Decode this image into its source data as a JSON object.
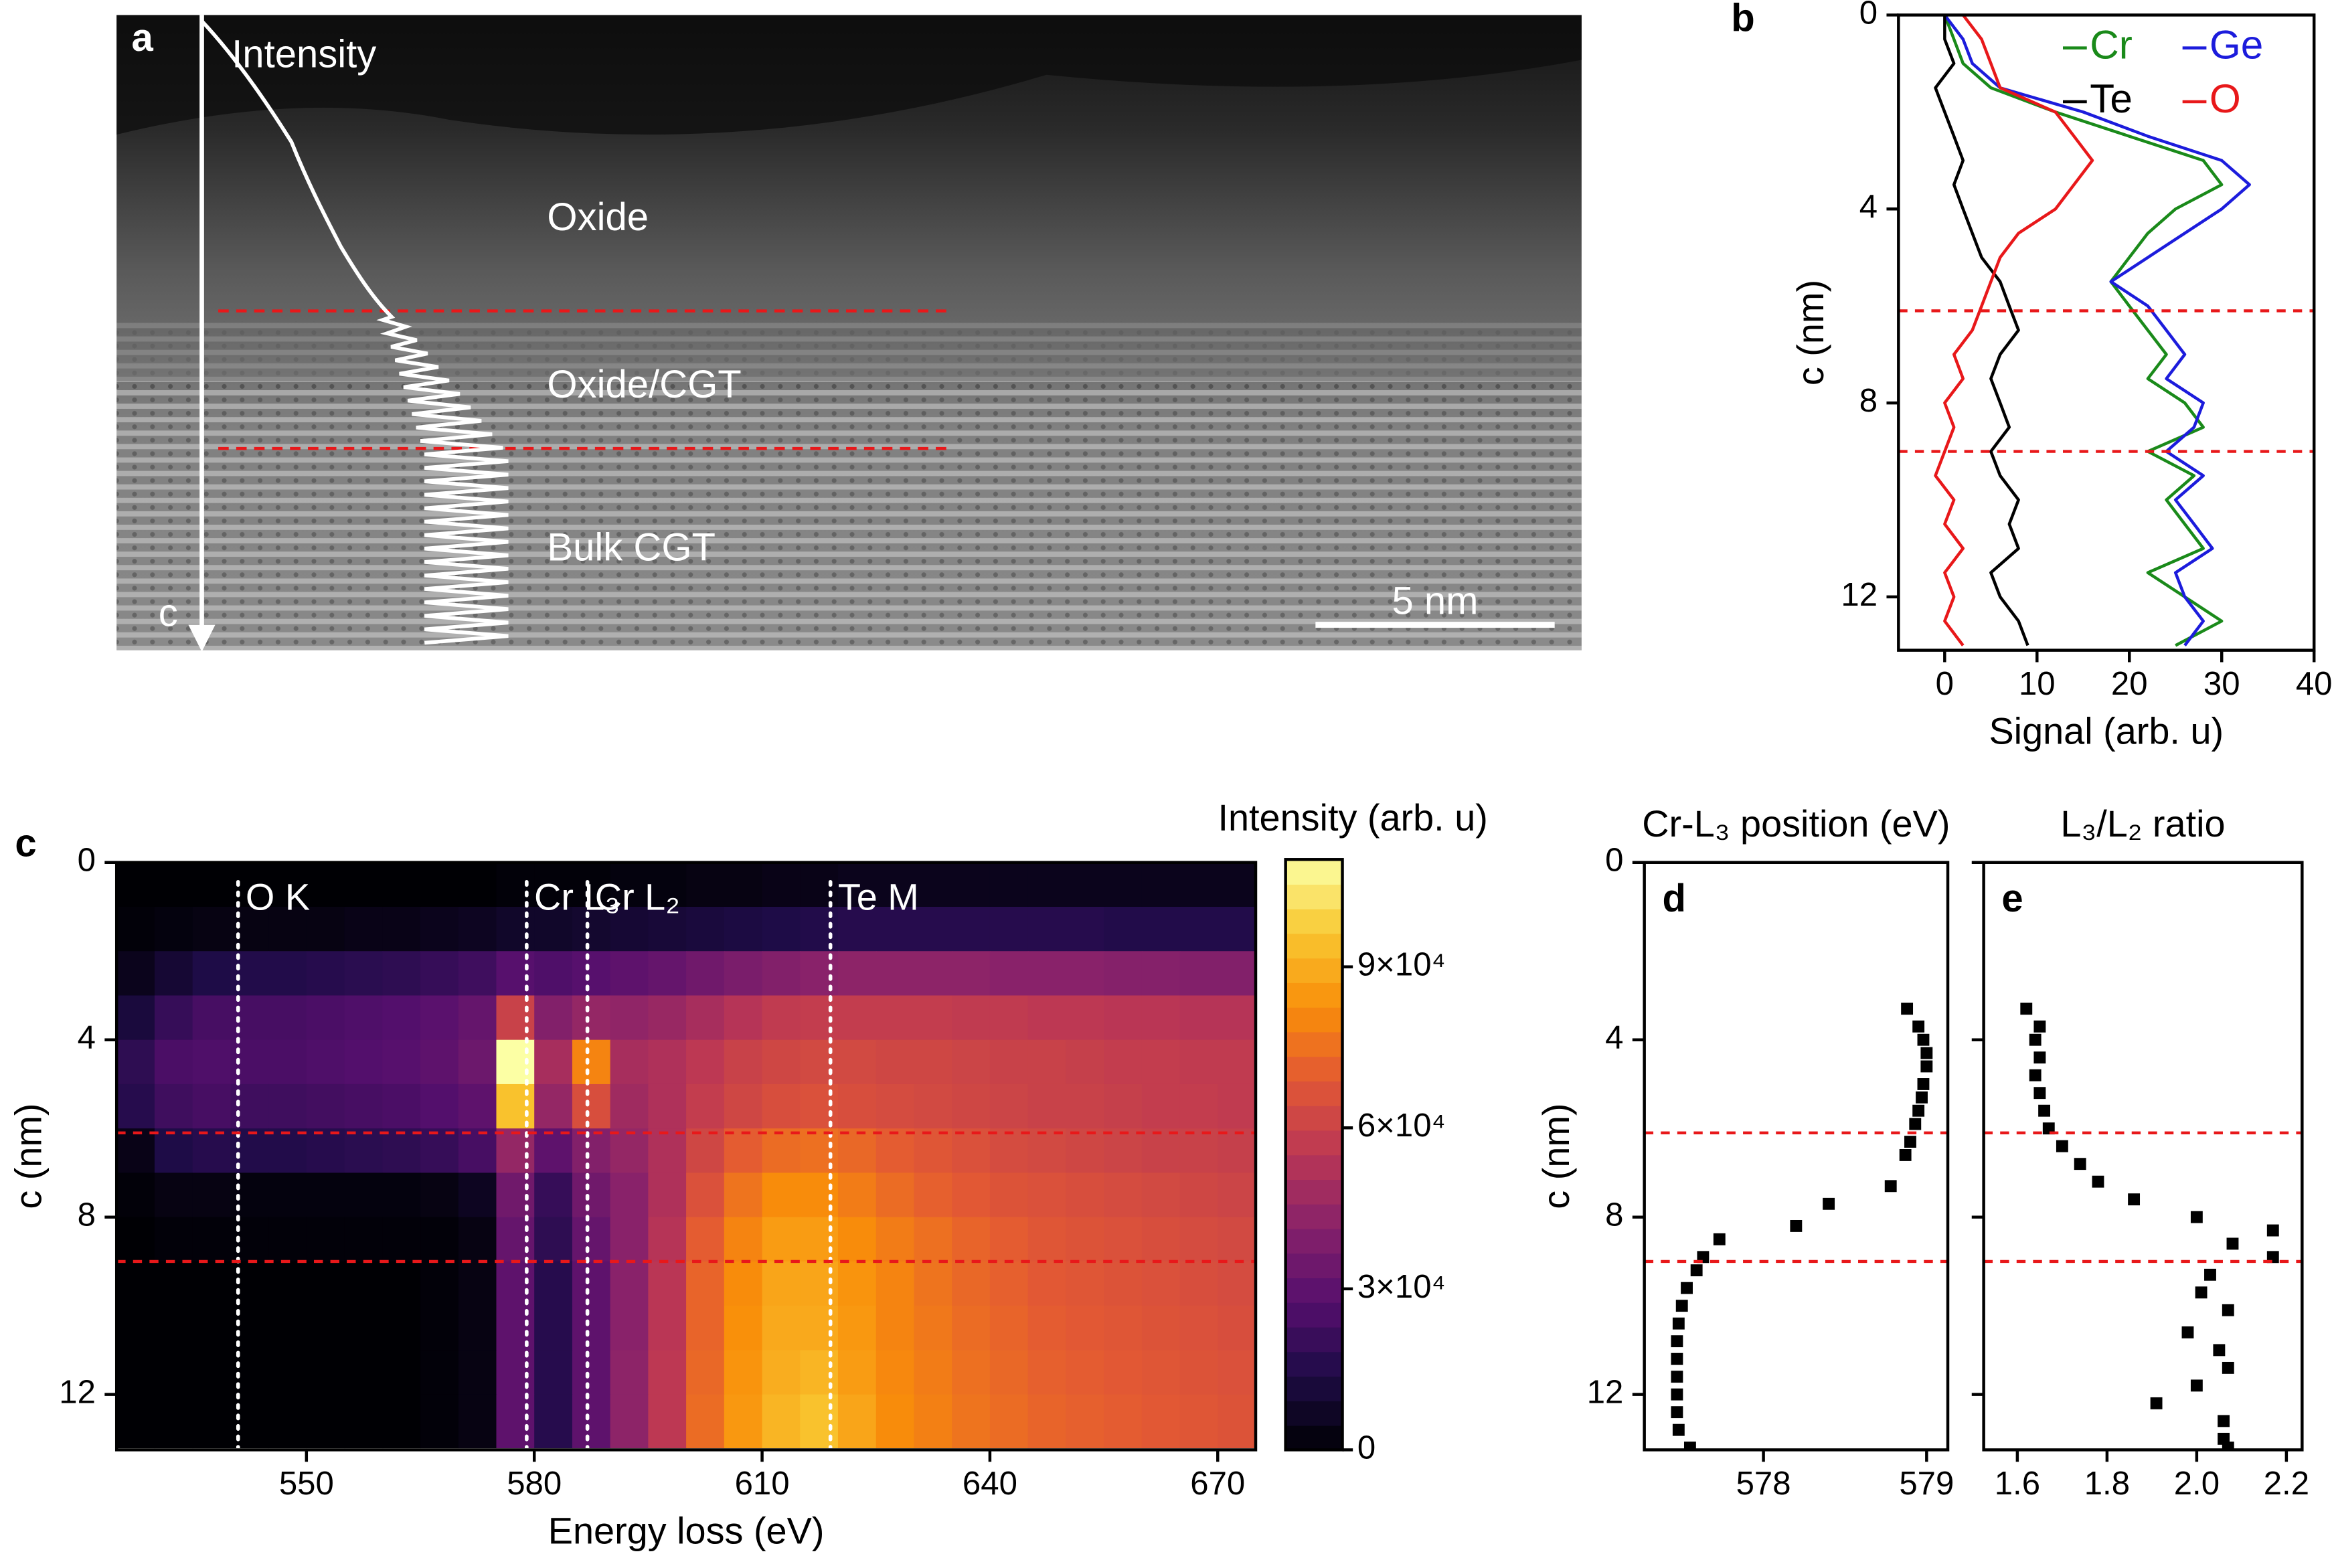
{
  "panel_a": {
    "label": "a",
    "annotations": [
      "Intensity",
      "Oxide",
      "Oxide/CGT",
      "Bulk CGT",
      "c"
    ],
    "scale_bar": "5 nm"
  },
  "chart_data": [
    {
      "type": "line",
      "panel_label": "b",
      "orientation": "horizontal",
      "xlabel": "Signal (arb. u)",
      "ylabel": "c (nm)",
      "xlim": [
        -5,
        40
      ],
      "xticks": [
        0,
        10,
        20,
        30,
        40
      ],
      "ylim": [
        0,
        13.1
      ],
      "yticks": [
        0,
        4,
        8,
        12
      ],
      "y_inverted": true,
      "legend": "upper right",
      "hlines": [
        6.1,
        9.0
      ],
      "c": [
        0,
        0.5,
        1,
        1.5,
        2,
        2.5,
        3,
        3.5,
        4,
        4.5,
        5,
        5.5,
        6,
        6.5,
        7,
        7.5,
        8,
        8.5,
        9,
        9.5,
        10,
        10.5,
        11,
        11.5,
        12,
        12.5,
        13
      ],
      "series": [
        {
          "name": "Cr",
          "color": "#1a8a1a",
          "values": [
            0,
            1,
            2,
            5,
            12,
            20,
            28,
            30,
            25,
            22,
            20,
            18,
            20,
            22,
            24,
            22,
            26,
            28,
            22,
            27,
            24,
            26,
            28,
            22,
            26,
            30,
            25
          ]
        },
        {
          "name": "Ge",
          "color": "#1c1cdc",
          "values": [
            0,
            2,
            3,
            6,
            15,
            22,
            30,
            33,
            30,
            26,
            22,
            18,
            22,
            24,
            26,
            24,
            28,
            27,
            24,
            28,
            25,
            27,
            29,
            25,
            26,
            28,
            26
          ]
        },
        {
          "name": "Te",
          "color": "#000000",
          "values": [
            0,
            0,
            1,
            -1,
            0,
            1,
            2,
            1,
            2,
            3,
            4,
            6,
            7,
            8,
            6,
            5,
            6,
            7,
            5,
            6,
            8,
            7,
            8,
            5,
            6,
            8,
            9
          ]
        },
        {
          "name": "O",
          "color": "#e8181a",
          "values": [
            2,
            4,
            5,
            6,
            12,
            14,
            16,
            14,
            12,
            8,
            6,
            5,
            4,
            3,
            1,
            2,
            0,
            1,
            0,
            -1,
            1,
            0,
            2,
            0,
            1,
            0,
            2
          ]
        }
      ]
    },
    {
      "type": "heatmap",
      "panel_label": "c",
      "xlabel": "Energy loss (eV)",
      "ylabel": "c (nm)",
      "colorbar_label": "Intensity (arb. u)",
      "colormap": "inferno",
      "xlim": [
        525,
        675
      ],
      "xticks": [
        550,
        580,
        610,
        640,
        670
      ],
      "ylim": [
        0,
        13.25
      ],
      "yticks": [
        0,
        4,
        8,
        12
      ],
      "y_inverted": true,
      "clim": [
        0,
        110000
      ],
      "cticks": [
        0,
        {
          "value": 30000,
          "label": "3×10⁴"
        },
        {
          "value": 60000,
          "label": "6×10⁴"
        },
        {
          "value": 90000,
          "label": "9×10⁴"
        }
      ],
      "hlines": [
        6.1,
        9.0
      ],
      "annotations": [
        {
          "x": 541,
          "label": "O K"
        },
        {
          "x": 579,
          "label": "Cr L₃"
        },
        {
          "x": 587,
          "label": "Cr L₂"
        },
        {
          "x": 619,
          "label": "Te M"
        }
      ],
      "xbins": [
        525,
        530,
        535,
        540,
        545,
        550,
        555,
        560,
        565,
        570,
        575,
        580,
        585,
        590,
        595,
        600,
        605,
        610,
        615,
        620,
        625,
        630,
        635,
        640,
        645,
        650,
        655,
        660,
        665,
        670,
        675
      ],
      "ybins": [
        0,
        1,
        2,
        3,
        4,
        5,
        6,
        7,
        8,
        9,
        10,
        11,
        12,
        13.2
      ],
      "values": [
        [
          0,
          0,
          0,
          0,
          0,
          0,
          0,
          0,
          0,
          0,
          1000,
          1000,
          1000,
          2000,
          2000,
          3000,
          3000,
          4000,
          4000,
          5000,
          5000,
          5000,
          5000,
          5000,
          5000,
          5000,
          5000,
          5000,
          5000,
          5000
        ],
        [
          1000,
          2000,
          3000,
          3000,
          3000,
          3000,
          4000,
          4000,
          5000,
          6000,
          8000,
          8000,
          9000,
          10000,
          11000,
          12000,
          13000,
          14000,
          15000,
          16000,
          16000,
          16000,
          16000,
          16000,
          16000,
          16000,
          15000,
          15000,
          15000,
          15000
        ],
        [
          5000,
          10000,
          14000,
          15000,
          15000,
          16000,
          17000,
          18000,
          20000,
          22000,
          28000,
          26000,
          28000,
          30000,
          32000,
          35000,
          38000,
          40000,
          42000,
          43000,
          43000,
          43000,
          43000,
          42000,
          42000,
          42000,
          41000,
          41000,
          40000,
          40000
        ],
        [
          12000,
          20000,
          24000,
          24000,
          24000,
          25000,
          26000,
          27000,
          29000,
          32000,
          60000,
          40000,
          45000,
          44000,
          46000,
          50000,
          54000,
          57000,
          58000,
          58000,
          58000,
          58000,
          57000,
          57000,
          56000,
          56000,
          55000,
          55000,
          54000,
          54000
        ],
        [
          18000,
          25000,
          26000,
          25000,
          25000,
          26000,
          27000,
          28000,
          30000,
          34000,
          110000,
          50000,
          80000,
          50000,
          52000,
          56000,
          60000,
          62000,
          63000,
          63000,
          62000,
          62000,
          61000,
          60000,
          60000,
          59000,
          58000,
          58000,
          57000,
          57000
        ],
        [
          16000,
          22000,
          24000,
          22000,
          22000,
          23000,
          24000,
          25000,
          27000,
          30000,
          95000,
          45000,
          65000,
          48000,
          52000,
          58000,
          62000,
          65000,
          66000,
          65000,
          64000,
          63000,
          62000,
          61000,
          60000,
          60000,
          59000,
          58000,
          58000,
          57000
        ],
        [
          4000,
          14000,
          16000,
          15000,
          15000,
          16000,
          17000,
          18000,
          20000,
          24000,
          45000,
          30000,
          40000,
          45000,
          52000,
          62000,
          70000,
          74000,
          75000,
          73000,
          70000,
          68000,
          66000,
          64000,
          63000,
          62000,
          61000,
          60000,
          60000,
          59000
        ],
        [
          1000,
          3000,
          3000,
          2000,
          2000,
          2000,
          2000,
          2000,
          3000,
          6000,
          35000,
          20000,
          35000,
          42000,
          52000,
          66000,
          76000,
          82000,
          82000,
          78000,
          74000,
          71000,
          69000,
          67000,
          66000,
          65000,
          64000,
          63000,
          62000,
          61000
        ],
        [
          0,
          1000,
          1000,
          1000,
          1000,
          1000,
          1000,
          1000,
          1000,
          3000,
          32000,
          18000,
          32000,
          42000,
          54000,
          70000,
          80000,
          86000,
          86000,
          82000,
          78000,
          75000,
          72000,
          70000,
          68000,
          67000,
          66000,
          65000,
          64000,
          63000
        ],
        [
          0,
          0,
          0,
          0,
          0,
          0,
          0,
          0,
          1000,
          3000,
          30000,
          16000,
          30000,
          42000,
          55000,
          72000,
          82000,
          88000,
          88000,
          84000,
          80000,
          76000,
          73000,
          71000,
          69000,
          68000,
          67000,
          66000,
          65000,
          64000
        ],
        [
          0,
          0,
          0,
          0,
          0,
          0,
          0,
          0,
          1000,
          3000,
          30000,
          16000,
          30000,
          42000,
          55000,
          72000,
          83000,
          89000,
          89000,
          85000,
          80000,
          77000,
          74000,
          72000,
          70000,
          69000,
          68000,
          67000,
          66000,
          65000
        ],
        [
          0,
          0,
          0,
          0,
          0,
          0,
          0,
          0,
          1000,
          3000,
          30000,
          16000,
          30000,
          43000,
          56000,
          73000,
          84000,
          90000,
          92000,
          86000,
          81000,
          78000,
          75000,
          73000,
          71000,
          70000,
          69000,
          68000,
          67000,
          66000
        ],
        [
          0,
          0,
          0,
          0,
          0,
          0,
          0,
          0,
          1000,
          3000,
          30000,
          16000,
          30000,
          43000,
          56000,
          74000,
          85000,
          92000,
          95000,
          88000,
          82000,
          79000,
          76000,
          74000,
          72000,
          71000,
          70000,
          69000,
          68000,
          67000
        ]
      ]
    },
    {
      "type": "scatter",
      "panel_label": "d",
      "title": "Cr-L₃ position (eV)",
      "ylabel": "c (nm)",
      "color": "#000000",
      "xlim": [
        577.27,
        579.13
      ],
      "xticks": [
        578,
        579
      ],
      "ylim": [
        0,
        13.25
      ],
      "yticks": [
        0,
        4,
        8,
        12
      ],
      "y_inverted": true,
      "hlines": [
        6.1,
        9.0
      ],
      "y": [
        3.3,
        3.7,
        4.0,
        4.3,
        4.6,
        5.0,
        5.3,
        5.6,
        5.9,
        6.3,
        6.6,
        7.3,
        7.7,
        8.2,
        8.5,
        8.9,
        9.2,
        9.6,
        10.0,
        10.4,
        10.8,
        11.2,
        11.6,
        12.0,
        12.4,
        12.8,
        13.2
      ],
      "x": [
        578.88,
        578.95,
        578.98,
        579.0,
        579.0,
        578.98,
        578.97,
        578.95,
        578.93,
        578.9,
        578.87,
        578.78,
        578.4,
        578.2,
        577.73,
        577.63,
        577.59,
        577.53,
        577.5,
        577.48,
        577.47,
        577.47,
        577.47,
        577.47,
        577.47,
        577.48,
        577.55
      ]
    },
    {
      "type": "scatter",
      "panel_label": "e",
      "title": "L₃/L₂ ratio",
      "color": "#000000",
      "ytick_labels": false,
      "xlim": [
        1.525,
        2.235
      ],
      "xticks": [
        1.6,
        1.8,
        {
          "value": 2,
          "label": "2.0"
        },
        2.2
      ],
      "ylim": [
        0,
        13.25
      ],
      "yticks": [
        0,
        4,
        8,
        12
      ],
      "y_inverted": true,
      "hlines": [
        6.1,
        9.0
      ],
      "y": [
        3.3,
        3.7,
        4.0,
        4.4,
        4.8,
        5.2,
        5.6,
        6.0,
        6.4,
        6.8,
        7.2,
        7.6,
        8.0,
        8.3,
        8.6,
        8.9,
        9.3,
        9.7,
        10.1,
        10.6,
        11.0,
        11.4,
        11.8,
        12.2,
        12.6,
        13.0,
        13.2
      ],
      "x": [
        1.62,
        1.65,
        1.64,
        1.65,
        1.64,
        1.65,
        1.66,
        1.67,
        1.7,
        1.74,
        1.78,
        1.86,
        2.0,
        2.17,
        2.08,
        2.17,
        2.03,
        2.01,
        2.07,
        1.98,
        2.05,
        2.07,
        2.0,
        1.91,
        2.06,
        2.06,
        2.07
      ]
    }
  ]
}
